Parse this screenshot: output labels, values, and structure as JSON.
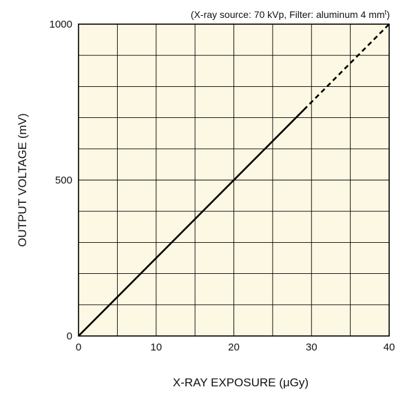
{
  "chart_data": {
    "type": "line",
    "title": "",
    "annotation": "(X-ray source: 70 kVp, Filter: aluminum 4 mm",
    "annotation_sup": "t",
    "annotation_close": ")",
    "xlabel": "X-RAY EXPOSURE (μGy)",
    "ylabel": "OUTPUT VOLTAGE (mV)",
    "xlim": [
      0,
      40
    ],
    "ylim": [
      0,
      1000
    ],
    "x_ticks": [
      0,
      10,
      20,
      30,
      40
    ],
    "x_tick_labels": [
      "0",
      "10",
      "20",
      "30",
      "40"
    ],
    "y_ticks": [
      0,
      500,
      1000
    ],
    "y_tick_labels": [
      "0",
      "500",
      "1000"
    ],
    "x_grid_step": 5,
    "y_grid_step": 100,
    "grid": true,
    "plot_background": "#fdf8e4",
    "line_color": "#000000",
    "series": [
      {
        "segments": [
          {
            "style": "solid",
            "x": [
              0,
              29
            ],
            "y": [
              0,
              725
            ]
          },
          {
            "style": "dashed",
            "x": [
              29,
              40
            ],
            "y": [
              725,
              1000
            ]
          }
        ]
      }
    ]
  }
}
